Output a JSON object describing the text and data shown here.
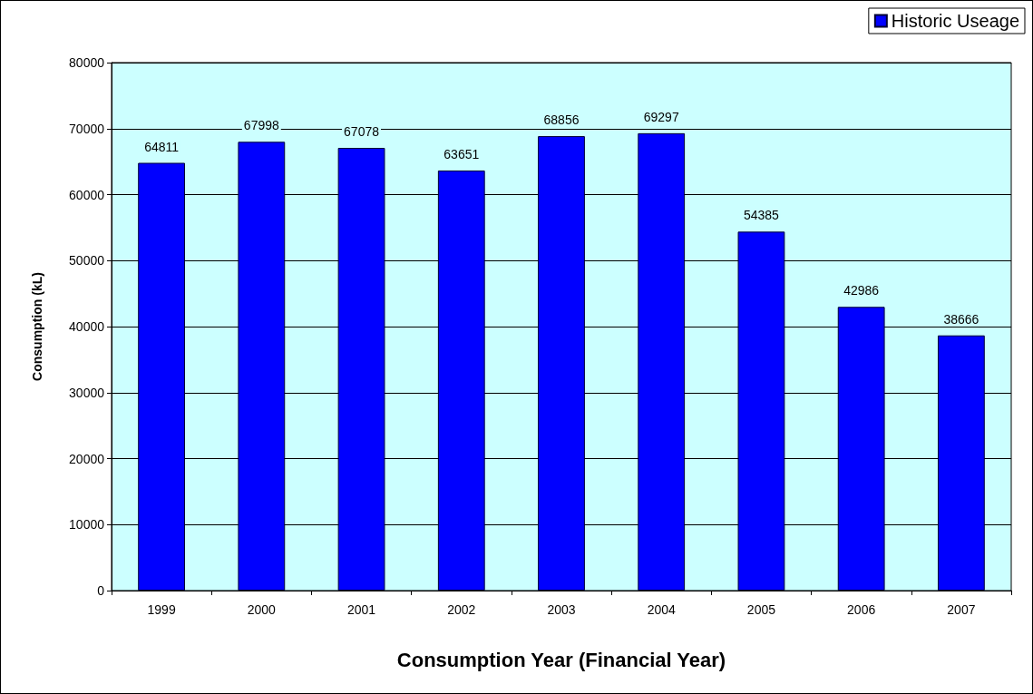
{
  "chart_data": {
    "type": "bar",
    "xlabel": "Consumption Year (Financial Year)",
    "ylabel": "Consumption (kL)",
    "categories": [
      "1999",
      "2000",
      "2001",
      "2002",
      "2003",
      "2004",
      "2005",
      "2006",
      "2007"
    ],
    "series": [
      {
        "name": "Historic Useage",
        "color": "#0000ff",
        "values": [
          64811,
          67998,
          67078,
          63651,
          68856,
          69297,
          54385,
          42986,
          38666
        ]
      }
    ],
    "ylim": [
      0,
      80000
    ],
    "yticks": [
      0,
      10000,
      20000,
      30000,
      40000,
      50000,
      60000,
      70000,
      80000
    ],
    "grid": "y",
    "legend": "top right",
    "data_labels": true
  }
}
